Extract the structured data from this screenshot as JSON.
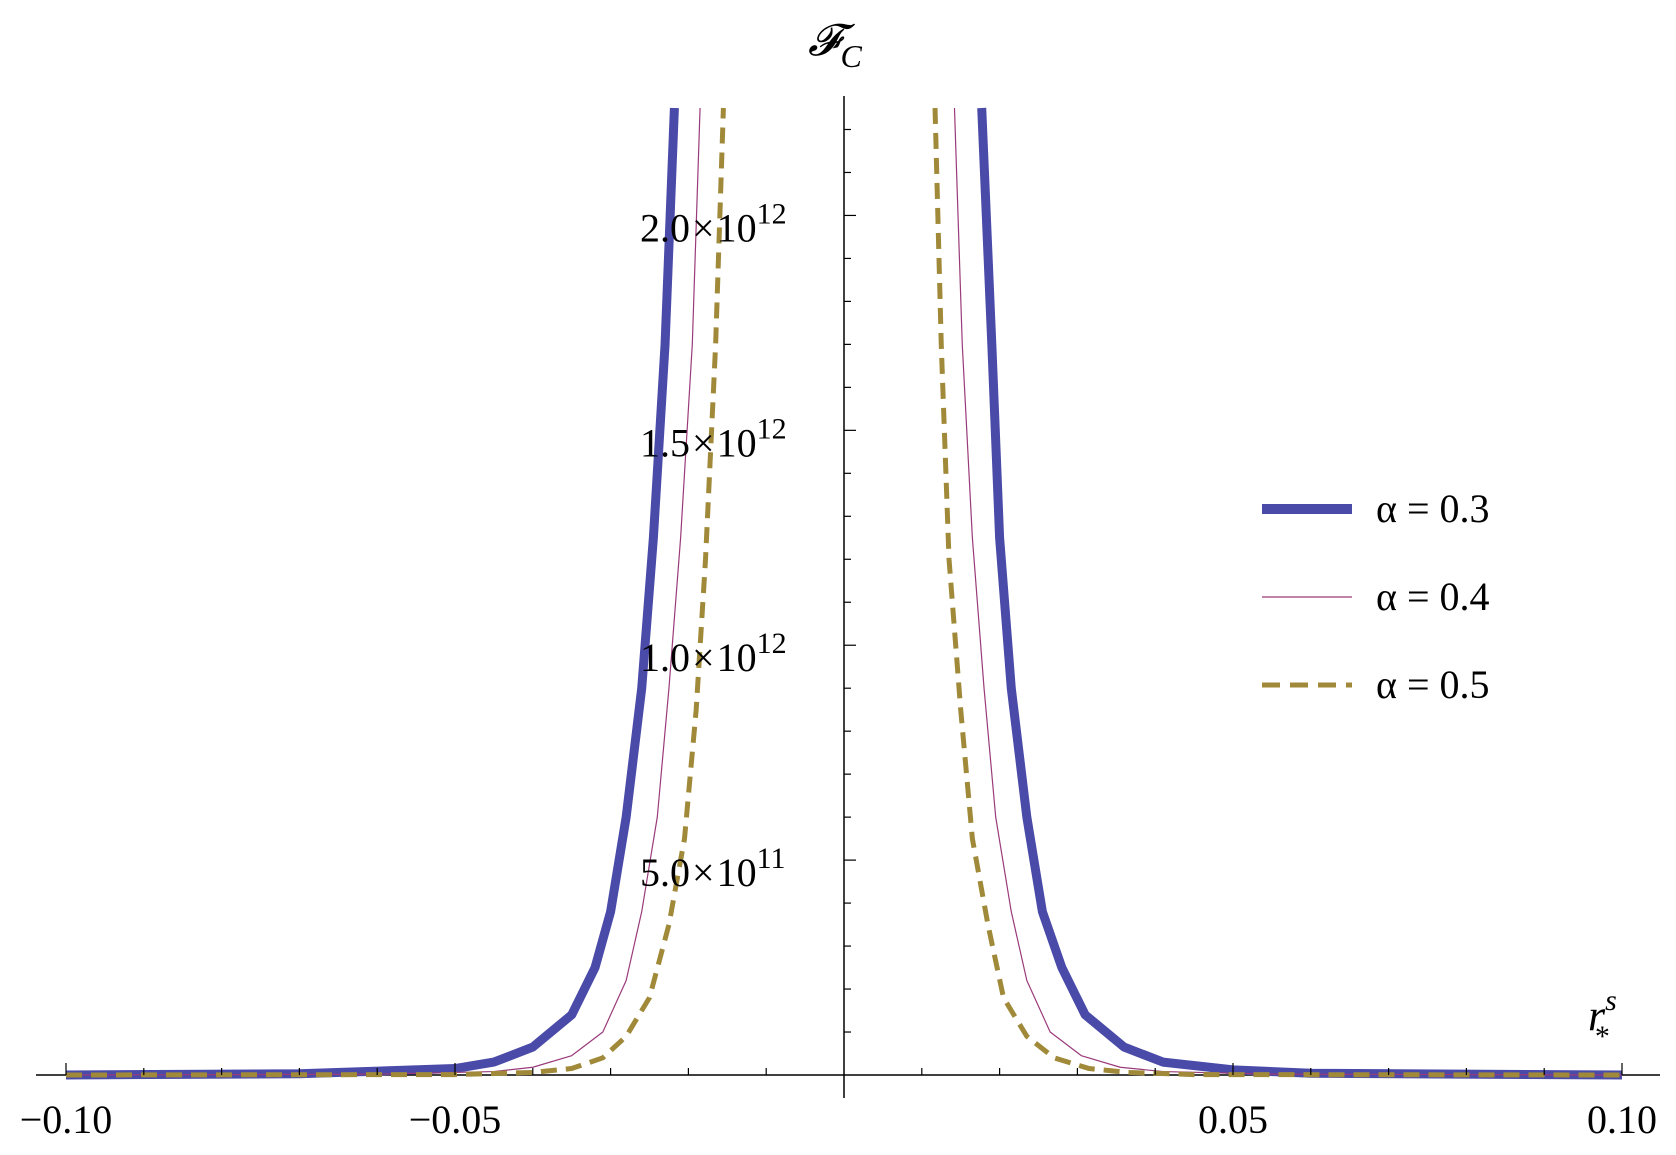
{
  "chart_data": {
    "type": "line",
    "title": "",
    "xlabel": "r",
    "xlabel_sup": "s",
    "xlabel_sub": "*",
    "ylabel": "𝓕",
    "ylabel_sub": "C",
    "xlim": [
      -0.1,
      0.1
    ],
    "ylim": [
      0,
      2250000000000.0
    ],
    "x_ticks": [
      {
        "value": -0.1,
        "label": "−0.10"
      },
      {
        "value": -0.05,
        "label": "−0.05"
      },
      {
        "value": 0.05,
        "label": "0.05"
      },
      {
        "value": 0.1,
        "label": "0.10"
      }
    ],
    "y_ticks": [
      {
        "value": 500000000000.0,
        "mantissa": "5.0",
        "times": "×",
        "base": "10",
        "exp": "11"
      },
      {
        "value": 1000000000000.0,
        "mantissa": "1.0",
        "times": "×",
        "base": "10",
        "exp": "12"
      },
      {
        "value": 1500000000000.0,
        "mantissa": "1.5",
        "times": "×",
        "base": "10",
        "exp": "12"
      },
      {
        "value": 2000000000000.0,
        "mantissa": "2.0",
        "times": "×",
        "base": "10",
        "exp": "12"
      }
    ],
    "grid": false,
    "legend_position": "right",
    "series": [
      {
        "name": "α = 0.3",
        "color": "#4a4aa8",
        "style": "solid-thick",
        "points": [
          [
            -0.1,
            0.0
          ],
          [
            -0.07,
            3000000000.0
          ],
          [
            -0.05,
            15000000000.0
          ],
          [
            -0.045,
            30000000000.0
          ],
          [
            -0.04,
            65000000000.0
          ],
          [
            -0.035,
            140000000000.0
          ],
          [
            -0.032,
            250000000000.0
          ],
          [
            -0.03,
            380000000000.0
          ],
          [
            -0.028,
            600000000000.0
          ],
          [
            -0.026,
            900000000000.0
          ],
          [
            -0.0245,
            1250000000000.0
          ],
          [
            -0.023,
            1700000000000.0
          ],
          [
            -0.0218,
            2250000000000.0
          ],
          [
            0.0177,
            2250000000000.0
          ],
          [
            0.019,
            1700000000000.0
          ],
          [
            0.02,
            1250000000000.0
          ],
          [
            0.0215,
            900000000000.0
          ],
          [
            0.0235,
            600000000000.0
          ],
          [
            0.0255,
            380000000000.0
          ],
          [
            0.028,
            250000000000.0
          ],
          [
            0.031,
            140000000000.0
          ],
          [
            0.036,
            65000000000.0
          ],
          [
            0.041,
            30000000000.0
          ],
          [
            0.05,
            12000000000.0
          ],
          [
            0.06,
            4000000000.0
          ],
          [
            0.1,
            0.0
          ]
        ]
      },
      {
        "name": "α = 0.4",
        "color": "#9a3a7a",
        "style": "solid-thin",
        "points": [
          [
            -0.1,
            0.0
          ],
          [
            -0.06,
            2000000000.0
          ],
          [
            -0.045,
            8000000000.0
          ],
          [
            -0.04,
            18000000000.0
          ],
          [
            -0.035,
            45000000000.0
          ],
          [
            -0.031,
            100000000000.0
          ],
          [
            -0.028,
            220000000000.0
          ],
          [
            -0.026,
            380000000000.0
          ],
          [
            -0.024,
            600000000000.0
          ],
          [
            -0.0225,
            900000000000.0
          ],
          [
            -0.021,
            1250000000000.0
          ],
          [
            -0.0195,
            1700000000000.0
          ],
          [
            -0.0185,
            2250000000000.0
          ],
          [
            0.0142,
            2250000000000.0
          ],
          [
            0.0152,
            1700000000000.0
          ],
          [
            0.0165,
            1250000000000.0
          ],
          [
            0.018,
            900000000000.0
          ],
          [
            0.0195,
            600000000000.0
          ],
          [
            0.0215,
            380000000000.0
          ],
          [
            0.0235,
            220000000000.0
          ],
          [
            0.0265,
            100000000000.0
          ],
          [
            0.0305,
            45000000000.0
          ],
          [
            0.0355,
            18000000000.0
          ],
          [
            0.041,
            8000000000.0
          ],
          [
            0.055,
            2000000000.0
          ],
          [
            0.1,
            0.0
          ]
        ]
      },
      {
        "name": "α = 0.5",
        "color": "#a08a3a",
        "style": "dashed",
        "points": [
          [
            -0.1,
            0.0
          ],
          [
            -0.05,
            1000000000.0
          ],
          [
            -0.04,
            6000000000.0
          ],
          [
            -0.035,
            15000000000.0
          ],
          [
            -0.031,
            40000000000.0
          ],
          [
            -0.028,
            90000000000.0
          ],
          [
            -0.025,
            180000000000.0
          ],
          [
            -0.0225,
            350000000000.0
          ],
          [
            -0.0205,
            550000000000.0
          ],
          [
            -0.019,
            850000000000.0
          ],
          [
            -0.0178,
            1200000000000.0
          ],
          [
            -0.0165,
            1700000000000.0
          ],
          [
            -0.0155,
            2250000000000.0
          ],
          [
            0.0117,
            2250000000000.0
          ],
          [
            0.0125,
            1700000000000.0
          ],
          [
            0.0135,
            1200000000000.0
          ],
          [
            0.015,
            850000000000.0
          ],
          [
            0.0165,
            550000000000.0
          ],
          [
            0.0185,
            350000000000.0
          ],
          [
            0.0205,
            180000000000.0
          ],
          [
            0.0235,
            90000000000.0
          ],
          [
            0.027,
            40000000000.0
          ],
          [
            0.0315,
            15000000000.0
          ],
          [
            0.0365,
            6000000000.0
          ],
          [
            0.045,
            1000000000.0
          ],
          [
            0.1,
            0.0
          ]
        ]
      }
    ]
  }
}
